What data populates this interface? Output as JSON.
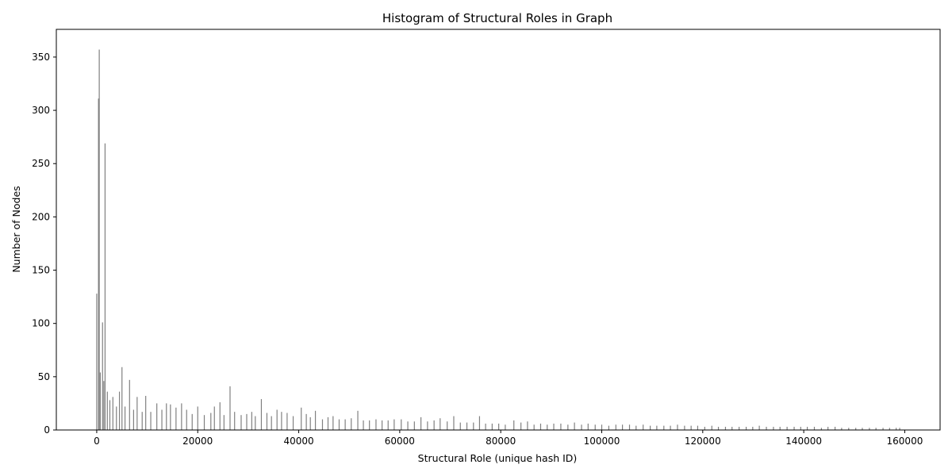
{
  "chart_data": {
    "type": "bar",
    "title": "Histogram of Structural Roles in Graph",
    "xlabel": "Structural Role (unique hash ID)",
    "ylabel": "Number of Nodes",
    "xlim": [
      -8000,
      167000
    ],
    "ylim": [
      0,
      376
    ],
    "x_ticks": [
      0,
      20000,
      40000,
      60000,
      80000,
      100000,
      120000,
      140000,
      160000
    ],
    "y_ticks": [
      0,
      50,
      100,
      150,
      200,
      250,
      300,
      350
    ],
    "bar_color": "#808080",
    "grid": false,
    "x": [
      0,
      350,
      500,
      700,
      1150,
      1400,
      1650,
      2100,
      2600,
      3200,
      3900,
      4500,
      5000,
      5600,
      6500,
      7300,
      8000,
      9000,
      9700,
      10700,
      11900,
      12900,
      13800,
      14600,
      15700,
      16800,
      17800,
      18900,
      20000,
      21300,
      22600,
      23300,
      24400,
      25200,
      26400,
      27300,
      28600,
      29700,
      30700,
      31400,
      32600,
      33700,
      34600,
      35700,
      36600,
      37700,
      38900,
      40500,
      41500,
      42300,
      43300,
      44700,
      45800,
      46800,
      48000,
      49200,
      50400,
      51700,
      52800,
      54000,
      55300,
      56500,
      57700,
      58900,
      60300,
      61600,
      62900,
      64200,
      65500,
      66800,
      68000,
      69400,
      70700,
      72000,
      73300,
      74600,
      75800,
      77000,
      78300,
      79600,
      80900,
      82600,
      84000,
      85300,
      86600,
      87900,
      89200,
      90500,
      91900,
      93300,
      94600,
      96000,
      97300,
      98700,
      100000,
      101400,
      102800,
      104100,
      105500,
      106800,
      108200,
      109600,
      110900,
      112300,
      113600,
      115000,
      116400,
      117700,
      119000,
      120400,
      121800,
      123100,
      124500,
      125800,
      127200,
      128600,
      129900,
      131200,
      132600,
      134000,
      135300,
      136700,
      138100,
      139400,
      140700,
      142100,
      143500,
      144800,
      146200,
      147500,
      148900,
      150300,
      151600,
      153000,
      154300,
      155700,
      157000,
      158300,
      159000
    ],
    "values": [
      128,
      311,
      357,
      54,
      101,
      46,
      269,
      36,
      28,
      31,
      22,
      36,
      59,
      22,
      47,
      19,
      31,
      17,
      32,
      17,
      25,
      19,
      25,
      24,
      21,
      25,
      19,
      15,
      22,
      14,
      16,
      22,
      26,
      14,
      41,
      17,
      14,
      15,
      17,
      13,
      29,
      16,
      13,
      19,
      17,
      16,
      13,
      21,
      15,
      12,
      18,
      10,
      12,
      13,
      10,
      10,
      11,
      18,
      9,
      9,
      10,
      9,
      9,
      10,
      10,
      8,
      8,
      12,
      8,
      9,
      11,
      8,
      13,
      7,
      7,
      7,
      13,
      6,
      6,
      6,
      5,
      9,
      7,
      8,
      5,
      6,
      5,
      6,
      6,
      5,
      7,
      5,
      6,
      5,
      5,
      4,
      5,
      5,
      5,
      4,
      5,
      4,
      4,
      4,
      4,
      5,
      4,
      4,
      4,
      3,
      4,
      3,
      3,
      3,
      3,
      3,
      3,
      4,
      3,
      3,
      3,
      3,
      3,
      3,
      3,
      3,
      2,
      3,
      3,
      2,
      2,
      2,
      2,
      2,
      2,
      2,
      2,
      2,
      2
    ]
  }
}
